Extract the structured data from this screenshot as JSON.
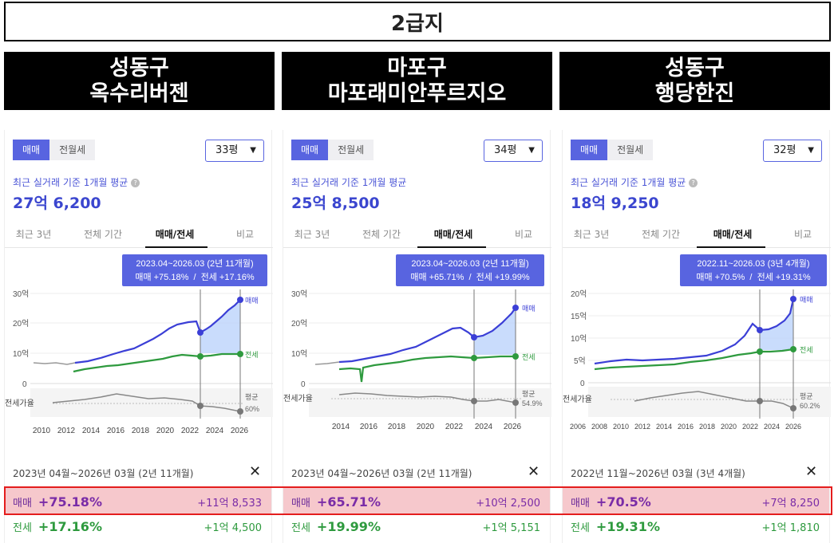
{
  "title": "2급지",
  "panels": [
    {
      "region": "성동구",
      "complex": "옥수리버젠",
      "tabs": {
        "trade": "매매",
        "rent": "전월세"
      },
      "size": "33평",
      "avg_label": "최근 실거래 기준 1개월 평균",
      "price": "27억 6,200",
      "periods": [
        "최근 3년",
        "전체 기간",
        "매매/전세",
        "비교"
      ],
      "tooltip_range": "2023.04~2026.03 (2년 11개월)",
      "tooltip_detail": "매매 +75.18%  /  전세 +17.16%",
      "y_ticks": [
        "30억",
        "20억",
        "10억",
        "0"
      ],
      "x_ticks": [
        "2010",
        "2012",
        "2014",
        "2016",
        "2018",
        "2020",
        "2022",
        "2024",
        "2026"
      ],
      "ratio_label": "전세가율",
      "avg_name": "평균",
      "avg_ratio": "60%",
      "summary": "2023년 04월~2026년 03월 (2년 11개월)",
      "close": "✕",
      "trade_row": {
        "label": "매매",
        "pct": "+75.18%",
        "amount": "+11억 8,533"
      },
      "rent_row": {
        "label": "전세",
        "pct": "+17.16%",
        "amount": "+1억 4,500"
      }
    },
    {
      "region": "마포구",
      "complex": "마포래미안푸르지오",
      "tabs": {
        "trade": "매매",
        "rent": "전월세"
      },
      "size": "34평",
      "avg_label": "최근 실거래 기준 1개월 평균",
      "price": "25억 8,500",
      "periods": [
        "최근 3년",
        "전체 기간",
        "매매/전세",
        "비교"
      ],
      "tooltip_range": "2023.04~2026.03 (2년 11개월)",
      "tooltip_detail": "매매 +65.71%  /  전세 +19.99%",
      "y_ticks": [
        "30억",
        "20억",
        "10억",
        "0"
      ],
      "x_ticks": [
        "2014",
        "2016",
        "2018",
        "2020",
        "2022",
        "2024",
        "2026"
      ],
      "ratio_label": "전세가율",
      "avg_name": "평균",
      "avg_ratio": "54.9%",
      "summary": "2023년 04월~2026년 03월 (2년 11개월)",
      "close": "✕",
      "trade_row": {
        "label": "매매",
        "pct": "+65.71%",
        "amount": "+10억 2,500"
      },
      "rent_row": {
        "label": "전세",
        "pct": "+19.99%",
        "amount": "+1억 5,151"
      }
    },
    {
      "region": "성동구",
      "complex": "행당한진",
      "tabs": {
        "trade": "매매",
        "rent": "전월세"
      },
      "size": "32평",
      "avg_label": "최근 실거래 기준 1개월 평균",
      "price": "18억 9,250",
      "periods": [
        "최근 3년",
        "전체 기간",
        "매매/전세",
        "비교"
      ],
      "tooltip_range": "2022.11~2026.03 (3년 4개월)",
      "tooltip_detail": "매매 +70.5%  /  전세 +19.31%",
      "y_ticks": [
        "20억",
        "15억",
        "10억",
        "5억",
        "0"
      ],
      "x_ticks": [
        "2006",
        "2008",
        "2010",
        "2012",
        "2014",
        "2016",
        "2018",
        "2020",
        "2022",
        "2024",
        "2026"
      ],
      "ratio_label": "전세가율",
      "avg_name": "평균",
      "avg_ratio": "60.2%",
      "summary": "2022년 11월~2026년 03월 (3년 4개월)",
      "close": "✕",
      "trade_row": {
        "label": "매매",
        "pct": "+70.5%",
        "amount": "+7억 8,250"
      },
      "rent_row": {
        "label": "전세",
        "pct": "+19.31%",
        "amount": "+1억 1,810"
      }
    }
  ],
  "colors": {
    "trade": "#3b3fd6",
    "rent": "#2e9a3e",
    "ratio": "#888888",
    "highlight": "#f6c8cc",
    "frame": "#e41d1d"
  }
}
